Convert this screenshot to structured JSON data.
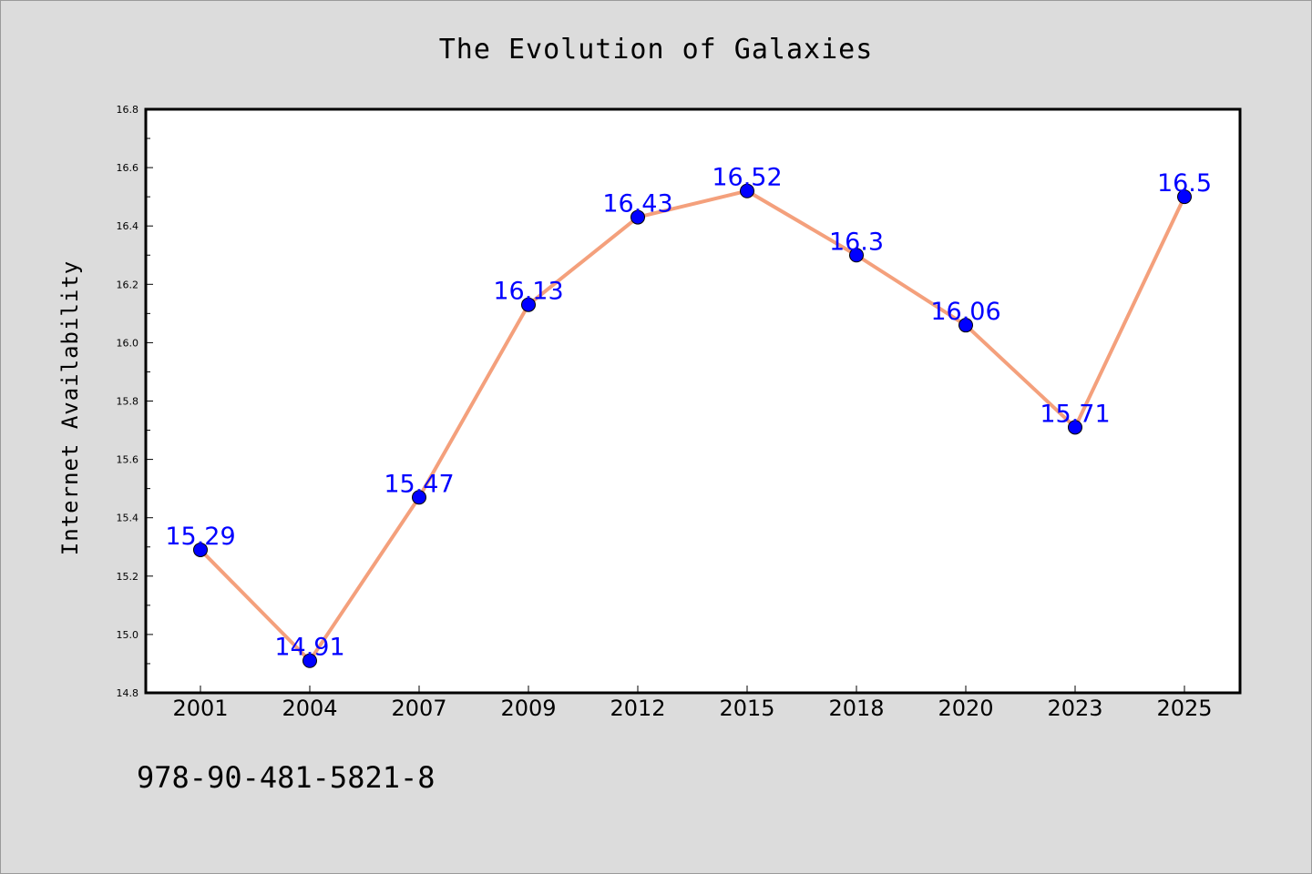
{
  "chart_data": {
    "type": "line",
    "title": "The Evolution of Galaxies",
    "xlabel": "",
    "ylabel": "Internet Availability",
    "categories": [
      "2001",
      "2004",
      "2007",
      "2009",
      "2012",
      "2015",
      "2018",
      "2020",
      "2023",
      "2025"
    ],
    "series": [
      {
        "values": [
          15.29,
          14.91,
          15.47,
          16.13,
          16.43,
          16.52,
          16.3,
          16.06,
          15.71,
          16.5
        ],
        "data_labels": [
          "15.29",
          "14.91",
          "15.47",
          "16.13",
          "16.43",
          "16.52",
          "16.3",
          "16.06",
          "15.71",
          "16.5"
        ]
      }
    ],
    "ylim": [
      14.8,
      16.8
    ],
    "yticks": [
      "14.8",
      "15.0",
      "15.2",
      "15.4",
      "15.6",
      "15.8",
      "16.0",
      "16.2",
      "16.4",
      "16.6",
      "16.8"
    ],
    "grid": false,
    "legend": false,
    "colors": {
      "line": "#f4a07c",
      "marker": "#0000ff",
      "data_label": "#0000ff",
      "figure_background": "#dcdcdc",
      "plot_background": "#ffffff",
      "frame": "#000000"
    }
  },
  "footer_text": "978-90-481-5821-8"
}
